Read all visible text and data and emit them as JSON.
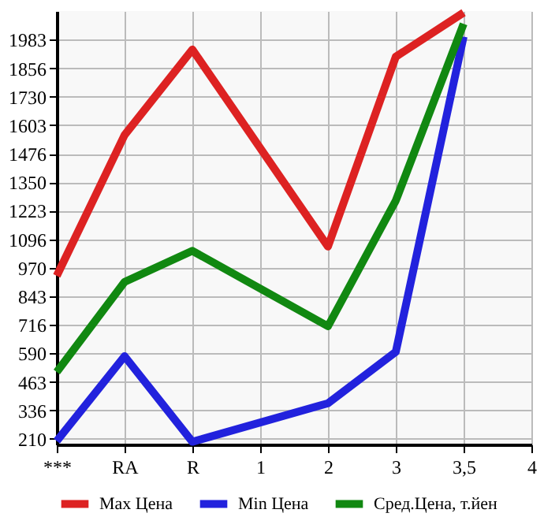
{
  "chart_data": {
    "type": "line",
    "categories": [
      "***",
      "RA",
      "R",
      "1",
      "2",
      "3",
      "3,5",
      "4"
    ],
    "series": [
      {
        "name": "Max Цена",
        "color": "#dd2222",
        "values": [
          934,
          1559,
          1939,
          null,
          1064,
          1907,
          2103,
          null
        ]
      },
      {
        "name": "Min Цена",
        "color": "#2222dd",
        "values": [
          200,
          577,
          197,
          null,
          368,
          596,
          1996,
          null
        ]
      },
      {
        "name": "Сред.Цена, т.йен",
        "color": "#118811",
        "values": [
          507,
          907,
          1045,
          null,
          710,
          1268,
          2053,
          null
        ]
      }
    ],
    "ylim": [
      185,
      2110
    ],
    "yticks": [
      210,
      336,
      463,
      590,
      716,
      843,
      970,
      1096,
      1223,
      1350,
      1476,
      1603,
      1730,
      1856,
      1983
    ],
    "grid": true,
    "legend": "bottom",
    "marker": "none",
    "line_style": "solid"
  }
}
